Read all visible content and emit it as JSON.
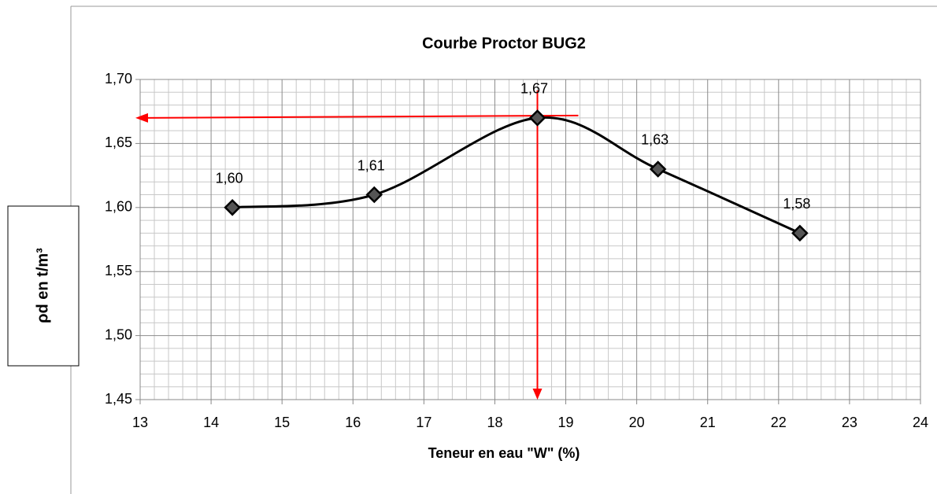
{
  "chart_data": {
    "type": "line",
    "title": "Courbe Proctor BUG2",
    "x_label": "Teneur en eau \"W\" (%)",
    "y_label": "ρd  en t/m³",
    "x": [
      14.3,
      16.3,
      18.6,
      20.3,
      22.3
    ],
    "series": [
      {
        "name": "BUG2",
        "color": "#000000",
        "values": [
          1.6,
          1.61,
          1.67,
          1.63,
          1.58
        ],
        "value_labels": [
          "1,60",
          "1,61",
          "1,67",
          "1,63",
          "1,58"
        ]
      }
    ],
    "xlim": [
      13,
      24
    ],
    "xticks": [
      13,
      14,
      15,
      16,
      17,
      18,
      19,
      20,
      21,
      22,
      23,
      24
    ],
    "ylim": [
      1.45,
      1.7
    ],
    "yticks": [
      {
        "value": 1.45,
        "label": "1,45"
      },
      {
        "value": 1.5,
        "label": "1,50"
      },
      {
        "value": 1.55,
        "label": "1,55"
      },
      {
        "value": 1.6,
        "label": "1,60"
      },
      {
        "value": 1.65,
        "label": "1,65"
      },
      {
        "value": 1.7,
        "label": "1,70"
      }
    ],
    "grid": true,
    "smooth": true,
    "annotation_color": "#ff0000"
  }
}
